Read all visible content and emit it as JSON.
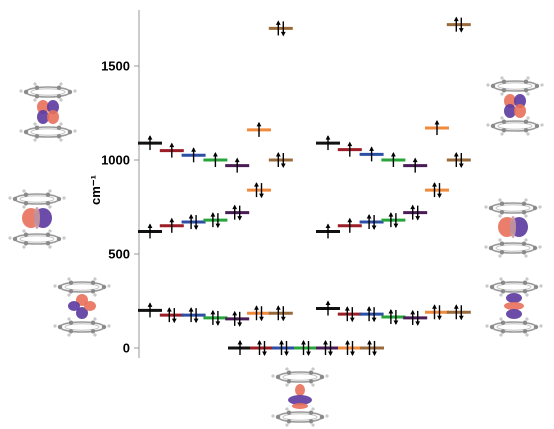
{
  "axis": {
    "label": "cm⁻¹",
    "ticks": [
      0,
      500,
      1000,
      1500
    ],
    "ylim": [
      -30,
      1760
    ]
  },
  "colors": {
    "black": "#111111",
    "red": "#9b1d25",
    "blue": "#2b4fa5",
    "green": "#27a53a",
    "purple": "#4a1c55",
    "orange": "#f08a3c",
    "brown": "#9a6b3a",
    "lobe_red": "#e8705a",
    "lobe_purple": "#5b3aa0"
  },
  "chart_data": {
    "type": "energy-level-diagram",
    "ylabel": "cm⁻¹",
    "ylim": [
      -30,
      1760
    ],
    "panels": [
      {
        "name": "",
        "levels": [
          {
            "x": 0,
            "energy": 1090,
            "color": "black",
            "electrons": 1
          },
          {
            "x": 1,
            "energy": 1050,
            "color": "red",
            "electrons": 1
          },
          {
            "x": 2,
            "energy": 1025,
            "color": "blue",
            "electrons": 1
          },
          {
            "x": 3,
            "energy": 1000,
            "color": "green",
            "electrons": 1
          },
          {
            "x": 4,
            "energy": 970,
            "color": "purple",
            "electrons": 1
          },
          {
            "x": 5,
            "energy": 1160,
            "color": "orange",
            "electrons": 1
          },
          {
            "x": 6,
            "energy": 1000,
            "color": "brown",
            "electrons": 2
          },
          {
            "x": 0,
            "energy": 620,
            "color": "black",
            "electrons": 1
          },
          {
            "x": 1,
            "energy": 650,
            "color": "red",
            "electrons": 1
          },
          {
            "x": 2,
            "energy": 670,
            "color": "blue",
            "electrons": 2
          },
          {
            "x": 3,
            "energy": 680,
            "color": "green",
            "electrons": 2
          },
          {
            "x": 4,
            "energy": 720,
            "color": "purple",
            "electrons": 2
          },
          {
            "x": 5,
            "energy": 840,
            "color": "orange",
            "electrons": 2
          },
          {
            "x": 6,
            "energy": 1700,
            "color": "brown",
            "electrons": 2
          },
          {
            "x": 0,
            "energy": 200,
            "color": "black",
            "electrons": 1
          },
          {
            "x": 1,
            "energy": 175,
            "color": "red",
            "electrons": 2
          },
          {
            "x": 2,
            "energy": 175,
            "color": "blue",
            "electrons": 2
          },
          {
            "x": 3,
            "energy": 160,
            "color": "green",
            "electrons": 2
          },
          {
            "x": 4,
            "energy": 155,
            "color": "purple",
            "electrons": 2
          },
          {
            "x": 5,
            "energy": 185,
            "color": "orange",
            "electrons": 2
          },
          {
            "x": 6,
            "energy": 185,
            "color": "brown",
            "electrons": 2
          }
        ]
      },
      {
        "name": "",
        "levels": [
          {
            "x": 0,
            "energy": 1090,
            "color": "black",
            "electrons": 1
          },
          {
            "x": 1,
            "energy": 1055,
            "color": "red",
            "electrons": 1
          },
          {
            "x": 2,
            "energy": 1030,
            "color": "blue",
            "electrons": 1
          },
          {
            "x": 3,
            "energy": 1000,
            "color": "green",
            "electrons": 1
          },
          {
            "x": 4,
            "energy": 970,
            "color": "purple",
            "electrons": 1
          },
          {
            "x": 5,
            "energy": 1170,
            "color": "orange",
            "electrons": 1
          },
          {
            "x": 6,
            "energy": 1000,
            "color": "brown",
            "electrons": 2
          },
          {
            "x": 0,
            "energy": 620,
            "color": "black",
            "electrons": 1
          },
          {
            "x": 1,
            "energy": 650,
            "color": "red",
            "electrons": 1
          },
          {
            "x": 2,
            "energy": 670,
            "color": "blue",
            "electrons": 2
          },
          {
            "x": 3,
            "energy": 680,
            "color": "green",
            "electrons": 2
          },
          {
            "x": 4,
            "energy": 720,
            "color": "purple",
            "electrons": 2
          },
          {
            "x": 5,
            "energy": 840,
            "color": "orange",
            "electrons": 2
          },
          {
            "x": 6,
            "energy": 1720,
            "color": "brown",
            "electrons": 2
          },
          {
            "x": 0,
            "energy": 210,
            "color": "black",
            "electrons": 1
          },
          {
            "x": 1,
            "energy": 180,
            "color": "red",
            "electrons": 2
          },
          {
            "x": 2,
            "energy": 180,
            "color": "blue",
            "electrons": 2
          },
          {
            "x": 3,
            "energy": 165,
            "color": "green",
            "electrons": 2
          },
          {
            "x": 4,
            "energy": 160,
            "color": "purple",
            "electrons": 2
          },
          {
            "x": 5,
            "energy": 190,
            "color": "orange",
            "electrons": 2
          },
          {
            "x": 6,
            "energy": 190,
            "color": "brown",
            "electrons": 2
          }
        ]
      },
      {
        "name": "",
        "levels": [
          {
            "x": 0,
            "energy": 0,
            "color": "black",
            "electrons": 1
          },
          {
            "x": 1,
            "energy": 0,
            "color": "red",
            "electrons": 2
          },
          {
            "x": 2,
            "energy": 0,
            "color": "blue",
            "electrons": 2
          },
          {
            "x": 3,
            "energy": 0,
            "color": "green",
            "electrons": 2
          },
          {
            "x": 4,
            "energy": 0,
            "color": "purple",
            "electrons": 2
          },
          {
            "x": 5,
            "energy": 0,
            "color": "orange",
            "electrons": 2
          },
          {
            "x": 6,
            "energy": 0,
            "color": "brown",
            "electrons": 2
          }
        ]
      }
    ]
  }
}
